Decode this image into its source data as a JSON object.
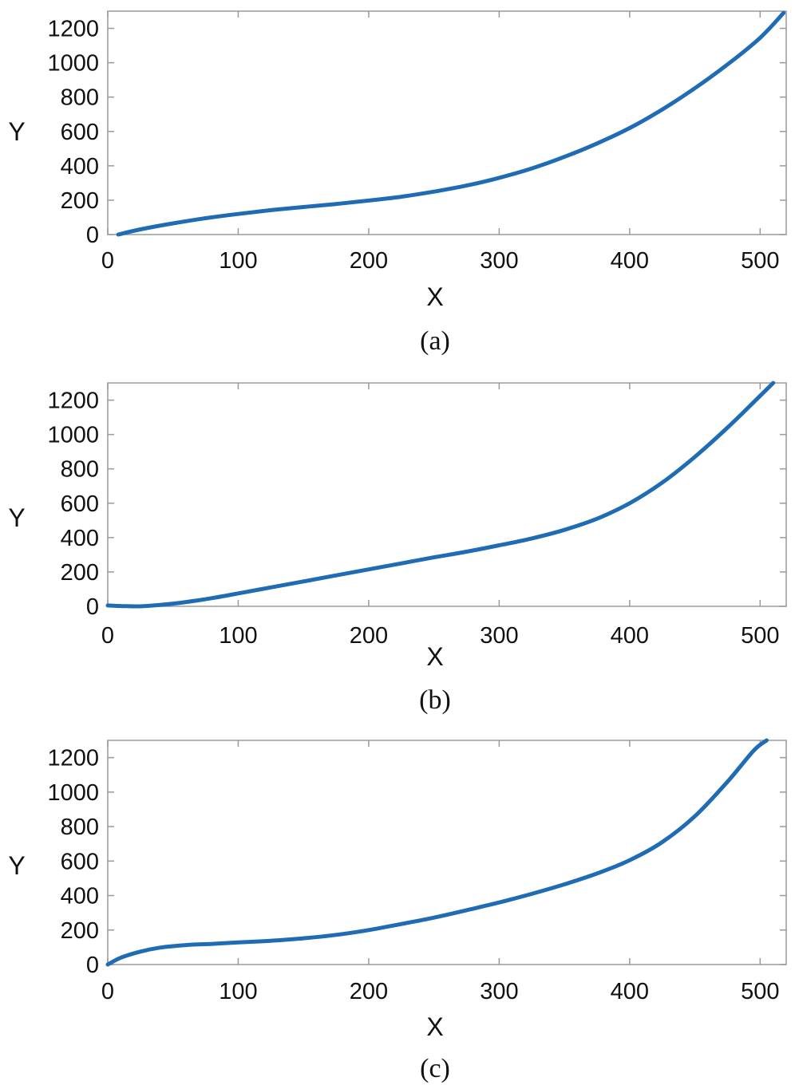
{
  "chart_data": [
    {
      "type": "line",
      "panel": "(a)",
      "xlabel": "X",
      "ylabel": "Y",
      "xlim": [
        0,
        520
      ],
      "ylim": [
        0,
        1300
      ],
      "xticks": [
        0,
        100,
        200,
        300,
        400,
        500
      ],
      "yticks": [
        0,
        200,
        400,
        600,
        800,
        1000,
        1200
      ],
      "series": [
        {
          "color": "#1f6cb5",
          "x": [
            8,
            25,
            50,
            75,
            100,
            125,
            150,
            175,
            200,
            225,
            250,
            275,
            300,
            325,
            350,
            375,
            400,
            425,
            450,
            475,
            500,
            518
          ],
          "y": [
            0,
            30,
            65,
            95,
            120,
            142,
            160,
            178,
            198,
            220,
            250,
            285,
            330,
            385,
            452,
            530,
            620,
            728,
            852,
            990,
            1145,
            1290
          ]
        }
      ]
    },
    {
      "type": "line",
      "panel": "(b)",
      "xlabel": "X",
      "ylabel": "Y",
      "xlim": [
        0,
        520
      ],
      "ylim": [
        0,
        1300
      ],
      "xticks": [
        0,
        100,
        200,
        300,
        400,
        500
      ],
      "yticks": [
        0,
        200,
        400,
        600,
        800,
        1000,
        1200
      ],
      "series": [
        {
          "color": "#1f6cb5",
          "x": [
            0,
            10,
            25,
            40,
            60,
            80,
            100,
            125,
            150,
            175,
            200,
            225,
            250,
            275,
            300,
            325,
            350,
            375,
            400,
            425,
            450,
            475,
            500,
            510
          ],
          "y": [
            5,
            2,
            0,
            8,
            25,
            48,
            75,
            110,
            145,
            180,
            215,
            250,
            285,
            318,
            355,
            395,
            445,
            510,
            600,
            720,
            870,
            1040,
            1225,
            1300
          ]
        }
      ]
    },
    {
      "type": "line",
      "panel": "(c)",
      "xlabel": "X",
      "ylabel": "Y",
      "xlim": [
        0,
        520
      ],
      "ylim": [
        0,
        1300
      ],
      "xticks": [
        0,
        100,
        200,
        300,
        400,
        500
      ],
      "yticks": [
        0,
        200,
        400,
        600,
        800,
        1000,
        1200
      ],
      "series": [
        {
          "color": "#1f6cb5",
          "x": [
            0,
            10,
            25,
            40,
            60,
            80,
            100,
            125,
            150,
            175,
            200,
            225,
            250,
            275,
            300,
            325,
            350,
            375,
            400,
            425,
            450,
            475,
            495,
            505
          ],
          "y": [
            0,
            40,
            75,
            98,
            113,
            120,
            128,
            138,
            152,
            172,
            200,
            235,
            272,
            315,
            360,
            410,
            465,
            528,
            605,
            710,
            860,
            1060,
            1240,
            1300
          ]
        }
      ]
    }
  ]
}
